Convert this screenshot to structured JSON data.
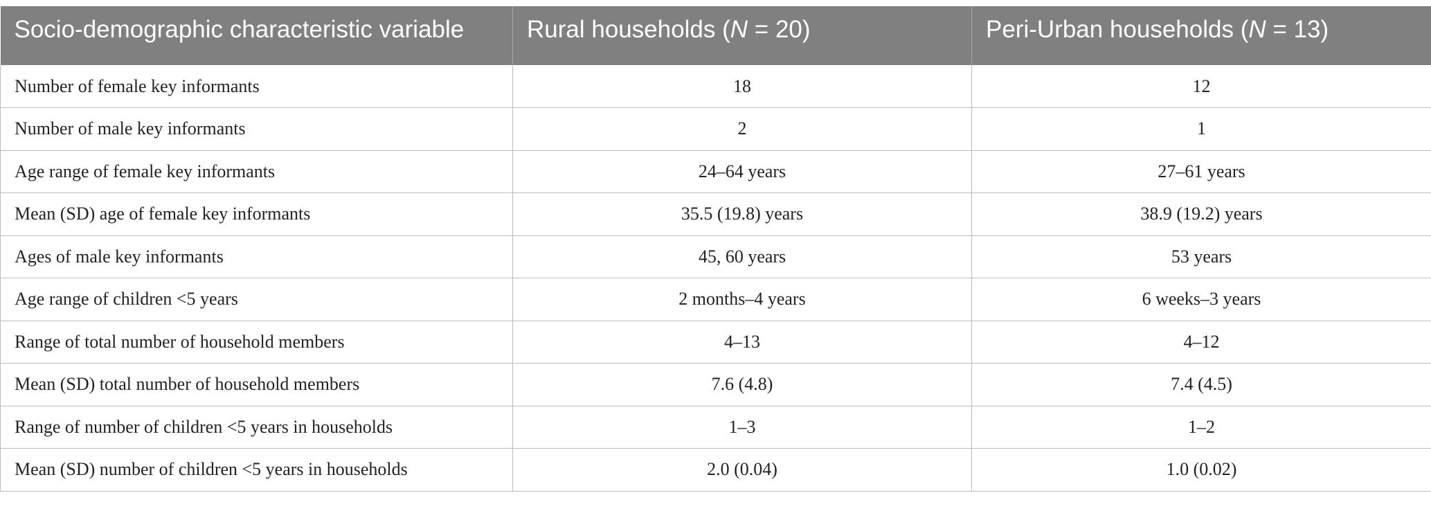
{
  "table": {
    "headers": {
      "col1": "Socio-demographic characteristic variable",
      "col2_prefix": "Rural households (",
      "col2_n": "N",
      "col2_suffix": " = 20)",
      "col3_prefix": "Peri-Urban households (",
      "col3_n": "N",
      "col3_suffix": " = 13)"
    },
    "rows": [
      {
        "variable": "Number of female key informants",
        "rural": "18",
        "peri_urban": "12"
      },
      {
        "variable": "Number of male key informants",
        "rural": "2",
        "peri_urban": "1"
      },
      {
        "variable": "Age range of female key informants",
        "rural": "24–64 years",
        "peri_urban": "27–61 years"
      },
      {
        "variable": "Mean (SD) age of female key informants",
        "rural": "35.5 (19.8) years",
        "peri_urban": "38.9 (19.2) years"
      },
      {
        "variable": "Ages of male key informants",
        "rural": "45, 60 years",
        "peri_urban": "53 years"
      },
      {
        "variable": "Age range of children <5 years",
        "rural": "2 months–4 years",
        "peri_urban": "6 weeks–3 years"
      },
      {
        "variable": "Range of total number of household members",
        "rural": "4–13",
        "peri_urban": "4–12"
      },
      {
        "variable": "Mean (SD) total number of household members",
        "rural": "7.6 (4.8)",
        "peri_urban": "7.4 (4.5)"
      },
      {
        "variable": "Range of number of children <5 years in households",
        "rural": "1–3",
        "peri_urban": "1–2"
      },
      {
        "variable": "Mean (SD) number of children <5 years in households",
        "rural": "2.0 (0.04)",
        "peri_urban": "1.0 (0.02)"
      }
    ]
  }
}
